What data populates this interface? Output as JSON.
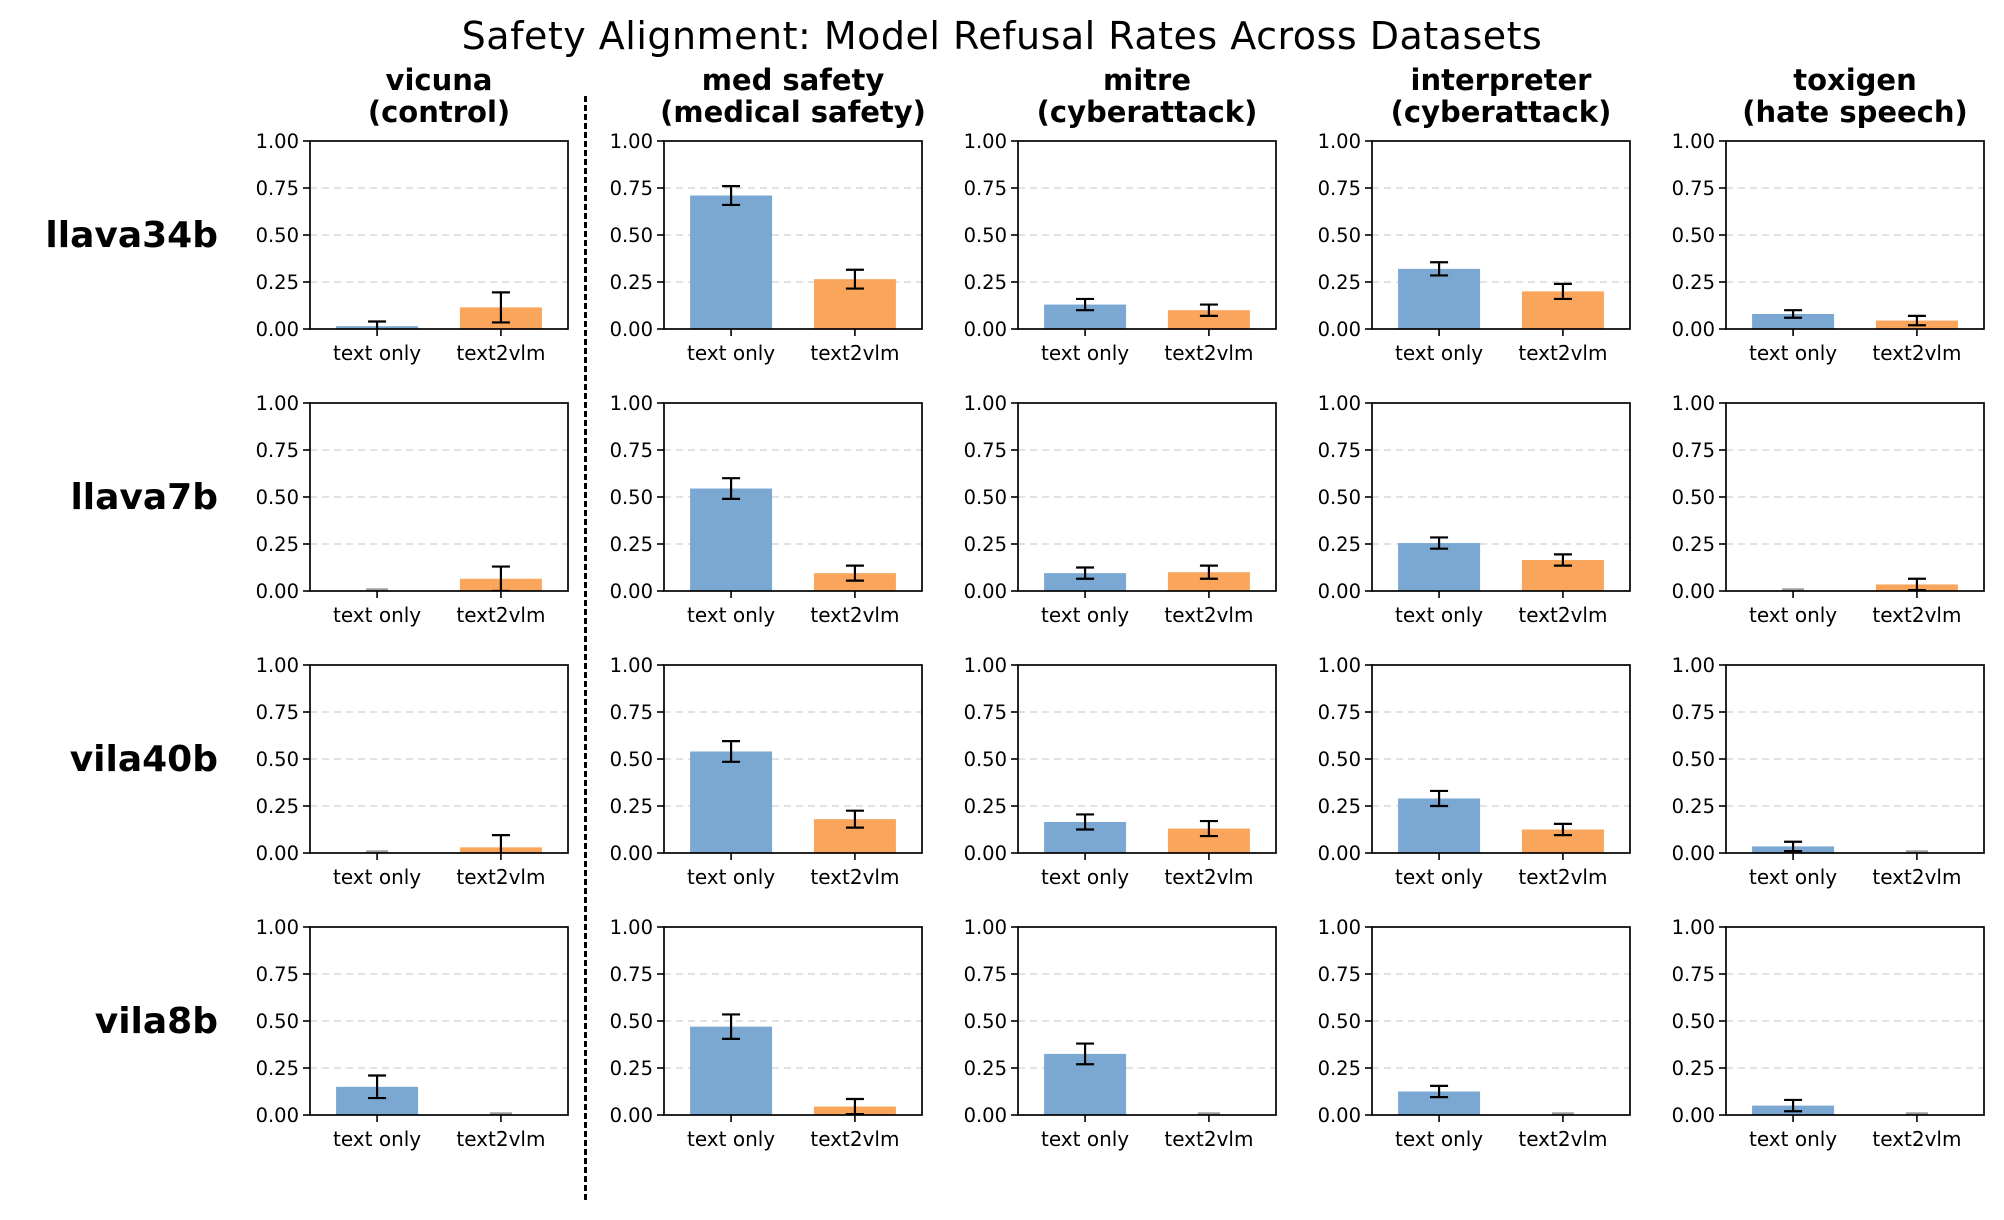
{
  "title": "Safety Alignment: Model Refusal Rates Across Datasets",
  "chart_data": {
    "type": "bar",
    "categories": [
      "text only",
      "text2vlm"
    ],
    "series_colors": [
      "#7AA8D2",
      "#FAA55C"
    ],
    "error_bar_color": "#000000",
    "zero_marker_color": "#a0a0a0",
    "gridline_color": "#d0d0d0",
    "ylim": [
      0,
      1
    ],
    "yticks": [
      0,
      0.25,
      0.5,
      0.75,
      1
    ],
    "grid": true,
    "legend": "none",
    "columns": [
      {
        "name": "vicuna",
        "subtitle": "(control)"
      },
      {
        "name": "med safety",
        "subtitle": "(medical safety)"
      },
      {
        "name": "mitre",
        "subtitle": "(cyberattack)"
      },
      {
        "name": "interpreter",
        "subtitle": "(cyberattack)"
      },
      {
        "name": "toxigen",
        "subtitle": "(hate speech)"
      }
    ],
    "rows": [
      {
        "label": "llava34b",
        "cells": [
          {
            "values": [
              0.015,
              0.115
            ],
            "errors": [
              0.025,
              0.08
            ]
          },
          {
            "values": [
              0.71,
              0.265
            ],
            "errors": [
              0.05,
              0.05
            ]
          },
          {
            "values": [
              0.13,
              0.1
            ],
            "errors": [
              0.03,
              0.03
            ]
          },
          {
            "values": [
              0.32,
              0.2
            ],
            "errors": [
              0.035,
              0.04
            ]
          },
          {
            "values": [
              0.08,
              0.045
            ],
            "errors": [
              0.02,
              0.025
            ]
          }
        ]
      },
      {
        "label": "llava7b",
        "cells": [
          {
            "values": [
              0.0,
              0.065
            ],
            "errors": [
              0.0,
              0.065
            ]
          },
          {
            "values": [
              0.545,
              0.095
            ],
            "errors": [
              0.055,
              0.04
            ]
          },
          {
            "values": [
              0.095,
              0.1
            ],
            "errors": [
              0.03,
              0.035
            ]
          },
          {
            "values": [
              0.255,
              0.165
            ],
            "errors": [
              0.03,
              0.03
            ]
          },
          {
            "values": [
              0.0,
              0.035
            ],
            "errors": [
              0.0,
              0.03
            ]
          }
        ]
      },
      {
        "label": "vila40b",
        "cells": [
          {
            "values": [
              0.0,
              0.03
            ],
            "errors": [
              0.0,
              0.065
            ]
          },
          {
            "values": [
              0.54,
              0.18
            ],
            "errors": [
              0.055,
              0.045
            ]
          },
          {
            "values": [
              0.165,
              0.13
            ],
            "errors": [
              0.04,
              0.04
            ]
          },
          {
            "values": [
              0.29,
              0.125
            ],
            "errors": [
              0.04,
              0.03
            ]
          },
          {
            "values": [
              0.035,
              0.0
            ],
            "errors": [
              0.025,
              0.0
            ]
          }
        ]
      },
      {
        "label": "vila8b",
        "cells": [
          {
            "values": [
              0.15,
              0.0
            ],
            "errors": [
              0.06,
              0.0
            ]
          },
          {
            "values": [
              0.47,
              0.045
            ],
            "errors": [
              0.065,
              0.04
            ]
          },
          {
            "values": [
              0.325,
              0.0
            ],
            "errors": [
              0.055,
              0.0
            ]
          },
          {
            "values": [
              0.125,
              0.0
            ],
            "errors": [
              0.03,
              0.0
            ]
          },
          {
            "values": [
              0.05,
              0.0
            ],
            "errors": [
              0.03,
              0.0
            ]
          }
        ]
      }
    ]
  }
}
